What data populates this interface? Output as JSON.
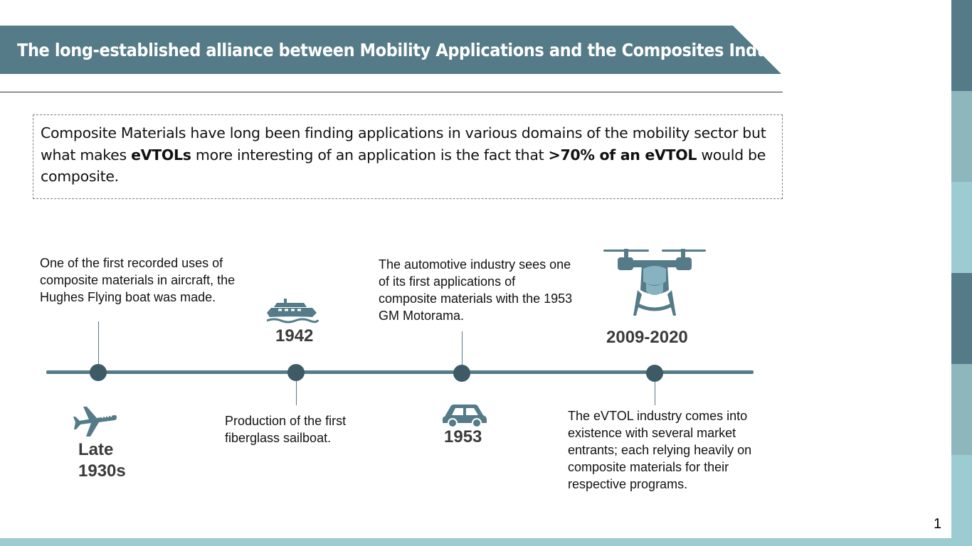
{
  "slide": {
    "title": "The long-established alliance between Mobility Applications and the Composites Industry",
    "page_number": "1"
  },
  "intro": {
    "part1": "Composite Materials have long been finding applications in various domains of the mobility sector but what makes ",
    "bold1": "eVTOLs",
    "part2": " more interesting of an application is the fact that ",
    "bold2": ">70% of an eVTOL",
    "part3": " would be composite."
  },
  "timeline": {
    "events": [
      {
        "year_line1": "Late",
        "year_line2": "1930s",
        "icon": "airplane-icon",
        "description": "One of the first recorded uses of composite materials in aircraft, the Hughes Flying boat was made."
      },
      {
        "year": "1942",
        "icon": "boat-icon",
        "description": "Production of the first fiberglass sailboat."
      },
      {
        "year": "1953",
        "icon": "car-icon",
        "description": "The automotive industry sees one of its first applications of composite materials with the 1953 GM Motorama."
      },
      {
        "year": "2009-2020",
        "icon": "evtol-drone-icon",
        "description": "The eVTOL industry comes into existence with several market entrants; each relying heavily on composite materials for their respective programs."
      }
    ]
  },
  "colors": {
    "banner": "#547b87",
    "timeline": "#547b87",
    "dot": "#3d5a65",
    "icon": "#547b87",
    "icon_light": "#86b3bf",
    "side_dark": "#547b87",
    "side_mid": "#8db6bd",
    "side_light": "#9ccbd2"
  }
}
